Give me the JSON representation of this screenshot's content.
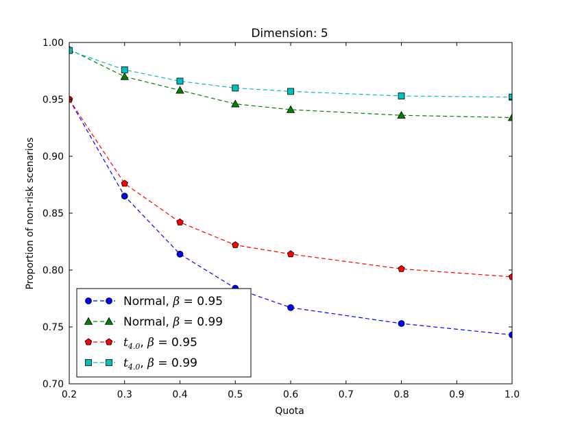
{
  "chart_data": {
    "type": "line",
    "title": "Dimension: 5",
    "xlabel": "Quota",
    "ylabel": "Proportion of non-risk scenarios",
    "xlim": [
      0.2,
      1.0
    ],
    "ylim": [
      0.7,
      1.0
    ],
    "xticks": [
      "0.2",
      "0.3",
      "0.4",
      "0.5",
      "0.6",
      "0.7",
      "0.8",
      "0.9",
      "1.0"
    ],
    "yticks": [
      "0.70",
      "0.75",
      "0.80",
      "0.85",
      "0.90",
      "0.95",
      "1.00"
    ],
    "legend_position": "lower-left",
    "series": [
      {
        "name": "Normal, β = 0.95",
        "legend_prefix": "Normal, ",
        "legend_beta": "β",
        "legend_value": " = 0.95",
        "color": "#0000ff",
        "marker": "circle",
        "x": [
          0.2,
          0.3,
          0.4,
          0.5,
          0.6,
          0.8,
          1.0
        ],
        "y": [
          0.95,
          0.865,
          0.814,
          0.784,
          0.767,
          0.753,
          0.743
        ]
      },
      {
        "name": "Normal, β = 0.99",
        "legend_prefix": "Normal, ",
        "legend_beta": "β",
        "legend_value": " = 0.99",
        "color": "#008000",
        "marker": "triangle",
        "x": [
          0.2,
          0.3,
          0.4,
          0.5,
          0.6,
          0.8,
          1.0
        ],
        "y": [
          0.994,
          0.97,
          0.958,
          0.946,
          0.941,
          0.936,
          0.934
        ]
      },
      {
        "name": "t4.0, β = 0.95",
        "legend_prefix": "t",
        "legend_sub": "4.0",
        "legend_mid": ", ",
        "legend_beta": "β",
        "legend_value": " = 0.95",
        "color": "#ff0000",
        "marker": "pentagon",
        "x": [
          0.2,
          0.3,
          0.4,
          0.5,
          0.6,
          0.8,
          1.0
        ],
        "y": [
          0.95,
          0.876,
          0.842,
          0.822,
          0.814,
          0.801,
          0.794
        ]
      },
      {
        "name": "t4.0, β = 0.99",
        "legend_prefix": "t",
        "legend_sub": "4.0",
        "legend_mid": ", ",
        "legend_beta": "β",
        "legend_value": " = 0.99",
        "color": "#00bfbf",
        "marker": "square",
        "x": [
          0.2,
          0.3,
          0.4,
          0.5,
          0.6,
          0.8,
          1.0
        ],
        "y": [
          0.993,
          0.976,
          0.966,
          0.96,
          0.957,
          0.953,
          0.952
        ]
      }
    ]
  }
}
